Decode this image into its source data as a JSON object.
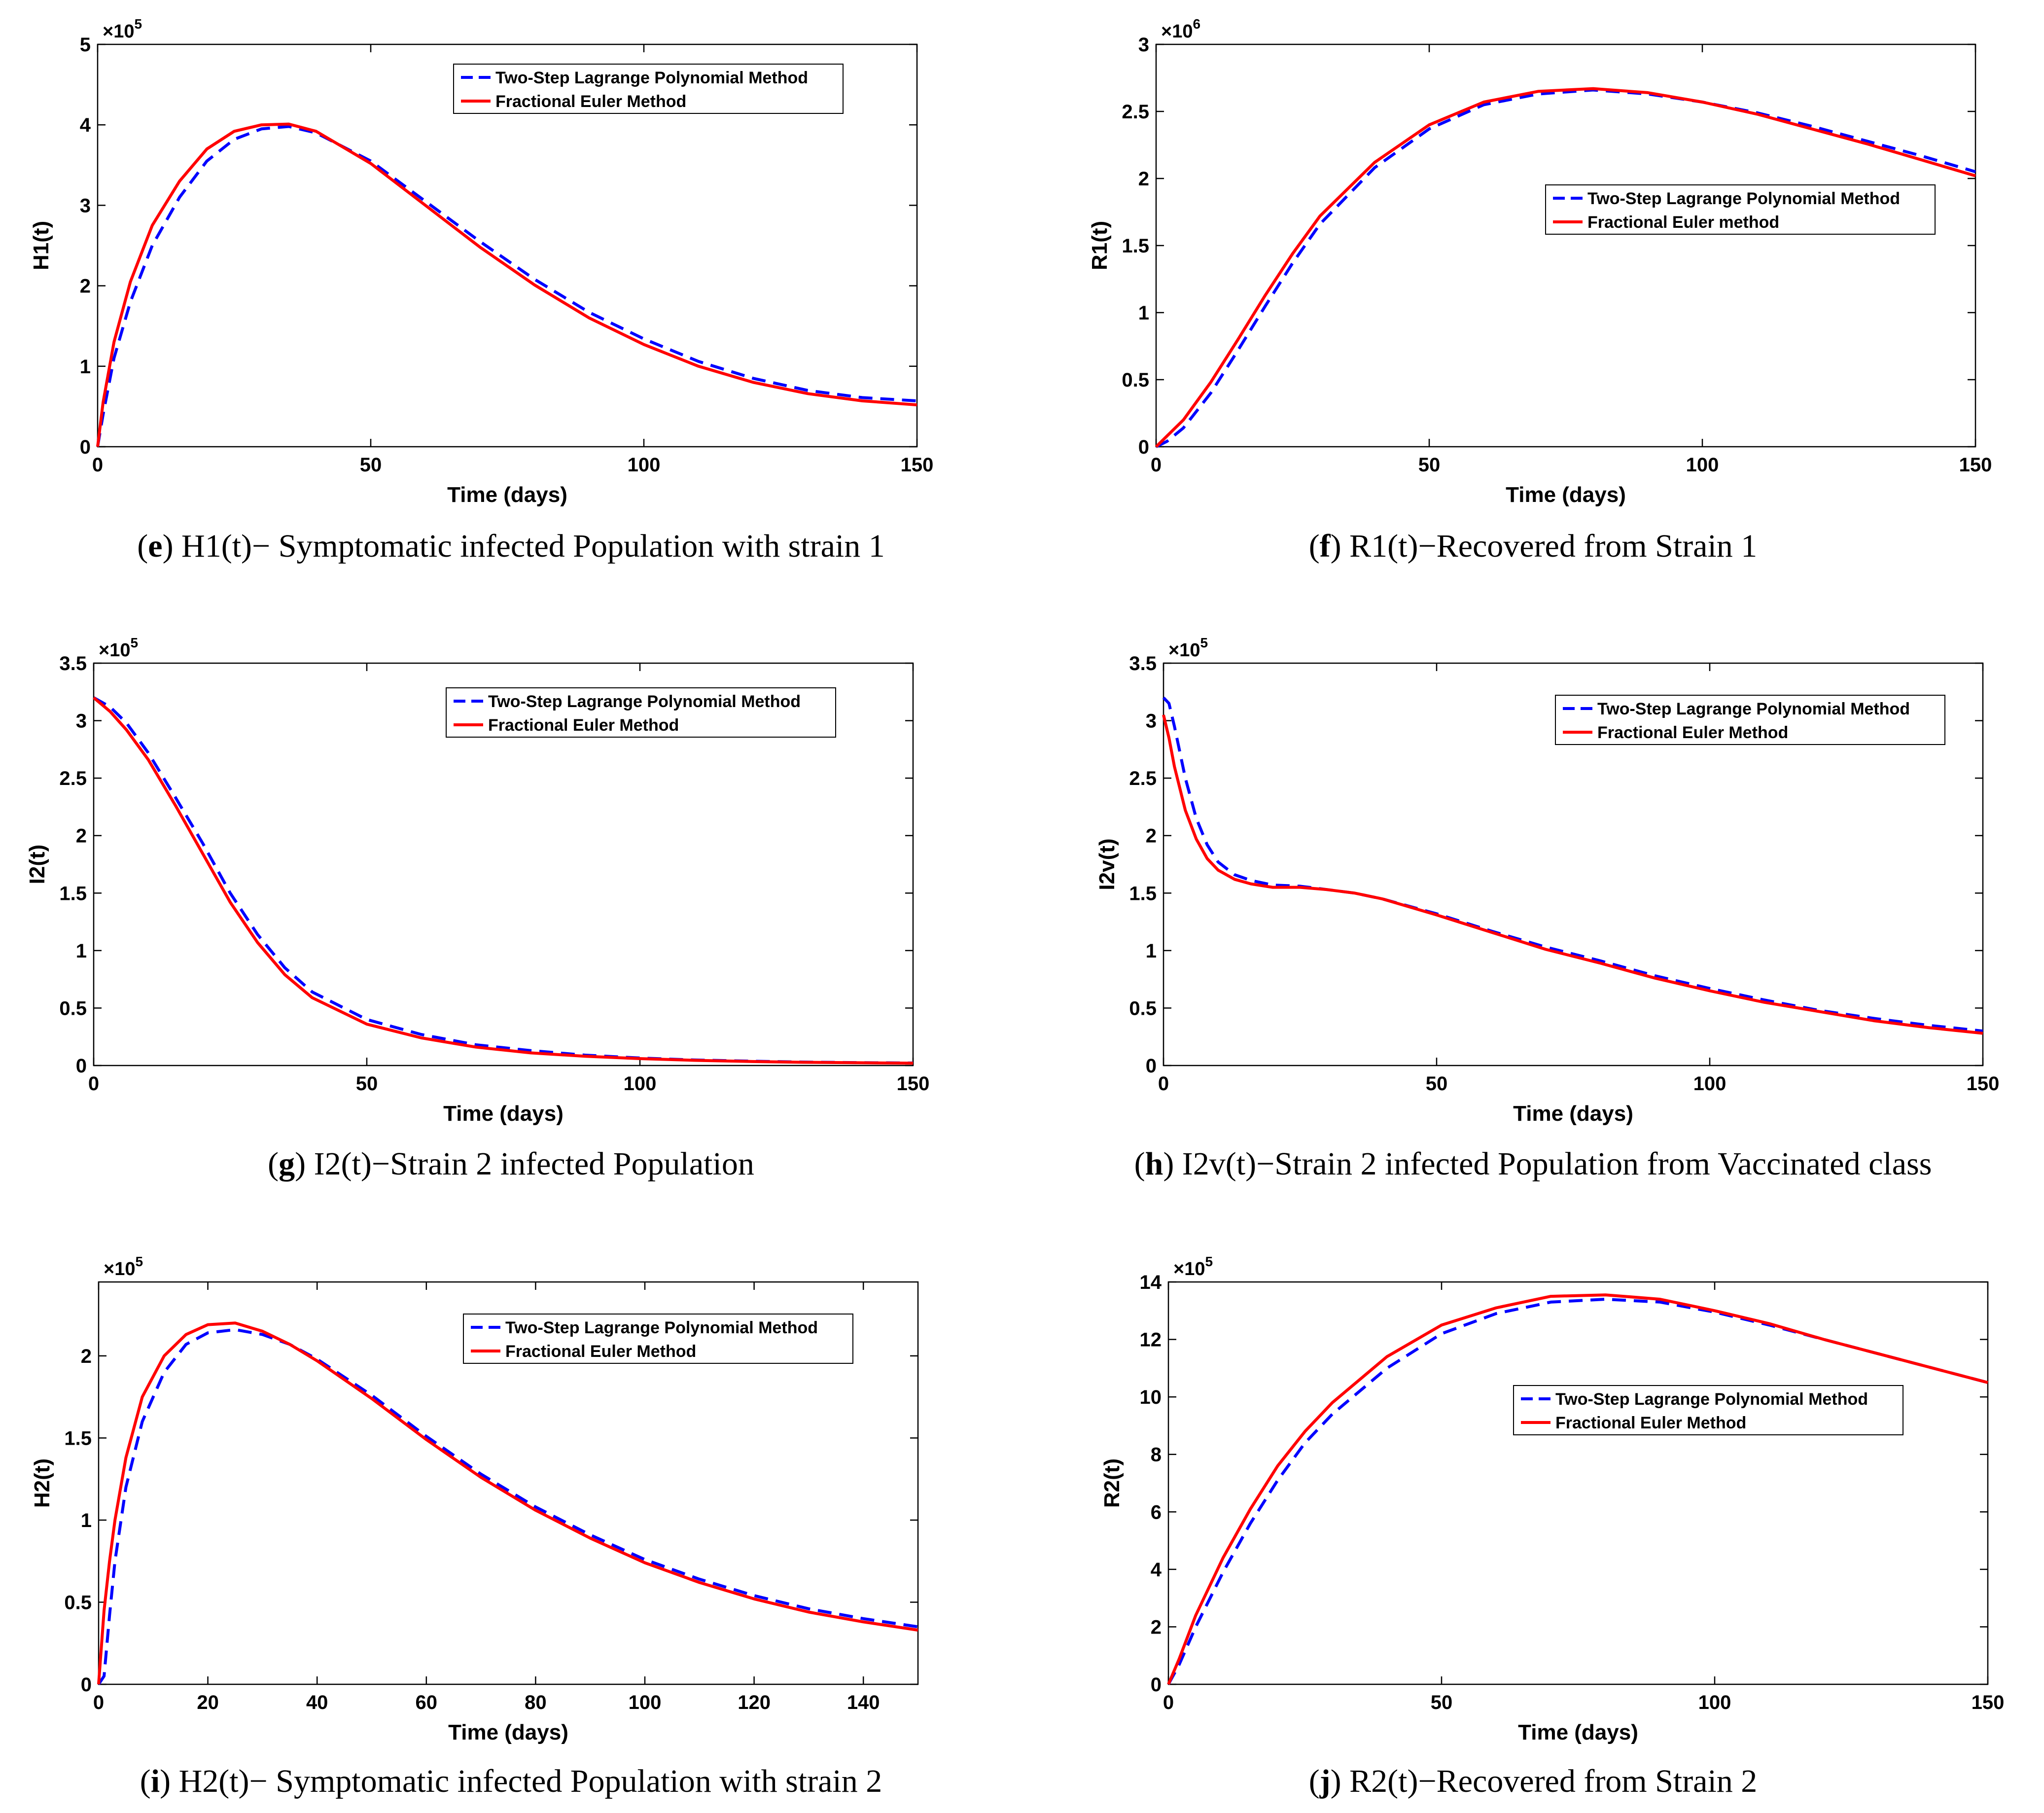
{
  "colors": {
    "series_dashed": "#0000ff",
    "series_solid": "#ff0000",
    "axis": "#000000"
  },
  "captions": [
    {
      "letter": "e",
      "text": "H1(t)− Symptomatic infected Population with strain 1"
    },
    {
      "letter": "f",
      "text": "R1(t)−Recovered from Strain 1"
    },
    {
      "letter": "g",
      "text": "I2(t)−Strain 2 infected Population"
    },
    {
      "letter": "h",
      "text": "I2v(t)−Strain 2 infected Population from Vaccinated class"
    },
    {
      "letter": "i",
      "text": "H2(t)− Symptomatic infected Population with strain 2"
    },
    {
      "letter": "j",
      "text": "R2(t)−Recovered from Strain 2"
    }
  ],
  "chart_data": [
    {
      "id": "e",
      "type": "line",
      "xlabel": "Time (days)",
      "ylabel": "H1(t)",
      "exponent": "×10^5",
      "xlim": [
        0,
        150
      ],
      "ylim": [
        0,
        5
      ],
      "xticks": [
        0,
        50,
        100,
        150
      ],
      "yticks": [
        0,
        1,
        2,
        3,
        4,
        5
      ],
      "legend": [
        "Two-Step Lagrange Polynomial Method",
        "Fractional Euler Method"
      ],
      "series": [
        {
          "name": "Two-Step Lagrange Polynomial Method",
          "style": "dashed",
          "x": [
            0,
            1,
            3,
            6,
            10,
            15,
            20,
            25,
            30,
            35,
            40,
            50,
            60,
            70,
            80,
            90,
            100,
            110,
            120,
            130,
            140,
            150
          ],
          "y": [
            0,
            0.4,
            1.1,
            1.8,
            2.5,
            3.1,
            3.55,
            3.82,
            3.95,
            3.98,
            3.9,
            3.55,
            3.05,
            2.55,
            2.08,
            1.67,
            1.34,
            1.06,
            0.85,
            0.7,
            0.61,
            0.57
          ]
        },
        {
          "name": "Fractional Euler Method",
          "style": "solid",
          "x": [
            0,
            1,
            3,
            6,
            10,
            15,
            20,
            25,
            30,
            35,
            40,
            50,
            60,
            70,
            80,
            90,
            100,
            110,
            120,
            130,
            140,
            150
          ],
          "y": [
            0,
            0.55,
            1.3,
            2.05,
            2.75,
            3.3,
            3.7,
            3.92,
            4.0,
            4.01,
            3.92,
            3.52,
            3.0,
            2.48,
            2.01,
            1.6,
            1.27,
            1.0,
            0.8,
            0.66,
            0.57,
            0.52
          ]
        }
      ]
    },
    {
      "id": "f",
      "type": "line",
      "xlabel": "Time (days)",
      "ylabel": "R1(t)",
      "exponent": "×10^6",
      "xlim": [
        0,
        150
      ],
      "ylim": [
        0,
        3
      ],
      "xticks": [
        0,
        50,
        100,
        150
      ],
      "yticks": [
        0,
        0.5,
        1,
        1.5,
        2,
        2.5,
        3
      ],
      "legend": [
        "Two-Step Lagrange Polynomial Method",
        "Fractional Euler method"
      ],
      "series": [
        {
          "name": "Two-Step Lagrange Polynomial Method",
          "style": "dashed",
          "x": [
            0,
            2,
            5,
            10,
            15,
            20,
            25,
            30,
            40,
            50,
            60,
            70,
            80,
            90,
            100,
            110,
            120,
            130,
            140,
            150
          ],
          "y": [
            0,
            0.04,
            0.14,
            0.4,
            0.72,
            1.05,
            1.37,
            1.66,
            2.08,
            2.37,
            2.55,
            2.63,
            2.66,
            2.63,
            2.57,
            2.49,
            2.39,
            2.28,
            2.17,
            2.05
          ]
        },
        {
          "name": "Fractional Euler method",
          "style": "solid",
          "x": [
            0,
            2,
            5,
            10,
            15,
            20,
            25,
            30,
            40,
            50,
            60,
            70,
            80,
            90,
            100,
            110,
            120,
            130,
            140,
            150
          ],
          "y": [
            0,
            0.08,
            0.2,
            0.48,
            0.8,
            1.13,
            1.44,
            1.72,
            2.12,
            2.4,
            2.57,
            2.65,
            2.67,
            2.64,
            2.57,
            2.48,
            2.37,
            2.26,
            2.14,
            2.02
          ]
        }
      ]
    },
    {
      "id": "g",
      "type": "line",
      "xlabel": "Time (days)",
      "ylabel": "I2(t)",
      "exponent": "×10^5",
      "xlim": [
        0,
        150
      ],
      "ylim": [
        0,
        3.5
      ],
      "xticks": [
        0,
        50,
        100,
        150
      ],
      "yticks": [
        0,
        0.5,
        1,
        1.5,
        2,
        2.5,
        3,
        3.5
      ],
      "legend": [
        "Two-Step Lagrange Polynomial Method",
        "Fractional Euler Method"
      ],
      "series": [
        {
          "name": "Two-Step Lagrange Polynomial Method",
          "style": "dashed",
          "x": [
            0,
            3,
            6,
            10,
            15,
            20,
            25,
            30,
            35,
            40,
            50,
            60,
            70,
            80,
            90,
            100,
            110,
            120,
            130,
            140,
            150
          ],
          "y": [
            3.2,
            3.12,
            2.98,
            2.72,
            2.33,
            1.93,
            1.5,
            1.14,
            0.85,
            0.64,
            0.4,
            0.27,
            0.18,
            0.13,
            0.09,
            0.065,
            0.048,
            0.038,
            0.03,
            0.025,
            0.022
          ]
        },
        {
          "name": "Fractional Euler Method",
          "style": "solid",
          "x": [
            0,
            3,
            6,
            10,
            15,
            20,
            25,
            30,
            35,
            40,
            50,
            60,
            70,
            80,
            90,
            100,
            110,
            120,
            130,
            140,
            150
          ],
          "y": [
            3.2,
            3.08,
            2.92,
            2.66,
            2.26,
            1.84,
            1.42,
            1.07,
            0.79,
            0.59,
            0.36,
            0.24,
            0.16,
            0.11,
            0.08,
            0.06,
            0.045,
            0.035,
            0.028,
            0.024,
            0.02
          ]
        }
      ]
    },
    {
      "id": "h",
      "type": "line",
      "xlabel": "Time (days)",
      "ylabel": "I2v(t)",
      "exponent": "×10^5",
      "xlim": [
        0,
        150
      ],
      "ylim": [
        0,
        3.5
      ],
      "xticks": [
        0,
        50,
        100,
        150
      ],
      "yticks": [
        0,
        0.5,
        1,
        1.5,
        2,
        2.5,
        3,
        3.5
      ],
      "legend": [
        "Two-Step Lagrange Polynomial Method",
        "Fractional Euler Method"
      ],
      "series": [
        {
          "name": "Two-Step Lagrange Polynomial Method",
          "style": "dashed",
          "x": [
            0,
            1,
            2,
            4,
            6,
            8,
            10,
            13,
            16,
            20,
            25,
            30,
            35,
            40,
            50,
            60,
            70,
            80,
            90,
            100,
            110,
            120,
            130,
            140,
            150
          ],
          "y": [
            3.2,
            3.15,
            2.95,
            2.5,
            2.15,
            1.92,
            1.77,
            1.66,
            1.61,
            1.57,
            1.56,
            1.53,
            1.5,
            1.45,
            1.32,
            1.17,
            1.03,
            0.91,
            0.78,
            0.67,
            0.57,
            0.48,
            0.41,
            0.35,
            0.3
          ]
        },
        {
          "name": "Fractional Euler Method",
          "style": "solid",
          "x": [
            0,
            1,
            2,
            4,
            6,
            8,
            10,
            13,
            16,
            20,
            25,
            30,
            35,
            40,
            50,
            60,
            70,
            80,
            90,
            100,
            110,
            120,
            130,
            140,
            150
          ],
          "y": [
            3.05,
            2.85,
            2.6,
            2.22,
            1.97,
            1.8,
            1.7,
            1.62,
            1.58,
            1.55,
            1.55,
            1.53,
            1.5,
            1.45,
            1.31,
            1.16,
            1.01,
            0.89,
            0.76,
            0.65,
            0.55,
            0.47,
            0.39,
            0.33,
            0.28
          ]
        }
      ]
    },
    {
      "id": "i",
      "type": "line",
      "xlabel": "Time (days)",
      "ylabel": "H2(t)",
      "exponent": "×10^5",
      "xlim": [
        0,
        150
      ],
      "ylim": [
        0,
        2.45
      ],
      "xticks": [
        0,
        20,
        40,
        60,
        80,
        100,
        120,
        140
      ],
      "yticks": [
        0,
        0.5,
        1,
        1.5,
        2
      ],
      "legend": [
        "Two-Step Lagrange Polynomial Method",
        "Fractional Euler Method"
      ],
      "series": [
        {
          "name": "Two-Step Lagrange Polynomial Method",
          "style": "dashed",
          "x": [
            0,
            1,
            2,
            3,
            5,
            8,
            12,
            16,
            20,
            25,
            30,
            35,
            40,
            50,
            60,
            70,
            80,
            90,
            100,
            110,
            120,
            130,
            140,
            150
          ],
          "y": [
            0,
            0.05,
            0.42,
            0.75,
            1.2,
            1.6,
            1.9,
            2.07,
            2.14,
            2.16,
            2.13,
            2.07,
            1.98,
            1.76,
            1.51,
            1.28,
            1.08,
            0.91,
            0.76,
            0.64,
            0.54,
            0.46,
            0.4,
            0.35
          ]
        },
        {
          "name": "Fractional Euler Method",
          "style": "solid",
          "x": [
            0,
            1,
            2,
            3,
            5,
            8,
            12,
            16,
            20,
            25,
            30,
            35,
            40,
            50,
            60,
            70,
            80,
            90,
            100,
            110,
            120,
            130,
            140,
            150
          ],
          "y": [
            0,
            0.45,
            0.75,
            1.0,
            1.38,
            1.75,
            2.0,
            2.13,
            2.19,
            2.2,
            2.15,
            2.07,
            1.97,
            1.74,
            1.49,
            1.26,
            1.06,
            0.89,
            0.74,
            0.62,
            0.52,
            0.44,
            0.38,
            0.33
          ]
        }
      ]
    },
    {
      "id": "j",
      "type": "line",
      "xlabel": "Time (days)",
      "ylabel": "R2(t)",
      "exponent": "×10^5",
      "xlim": [
        0,
        150
      ],
      "ylim": [
        0,
        14
      ],
      "xticks": [
        0,
        50,
        100,
        150
      ],
      "yticks": [
        0,
        2,
        4,
        6,
        8,
        10,
        12,
        14
      ],
      "legend": [
        "Two-Step Lagrange Polynomial Method",
        "Fractional Euler Method"
      ],
      "series": [
        {
          "name": "Two-Step Lagrange Polynomial Method",
          "style": "dashed",
          "x": [
            0,
            2,
            5,
            10,
            15,
            20,
            25,
            30,
            40,
            50,
            60,
            70,
            80,
            90,
            100,
            110,
            120,
            130,
            140,
            150
          ],
          "y": [
            0,
            0.7,
            2.0,
            3.9,
            5.6,
            7.1,
            8.4,
            9.4,
            11.0,
            12.2,
            12.9,
            13.3,
            13.4,
            13.3,
            12.95,
            12.5,
            12.0,
            11.5,
            11.0,
            10.5
          ]
        },
        {
          "name": "Fractional Euler Method",
          "style": "solid",
          "x": [
            0,
            2,
            5,
            10,
            15,
            20,
            25,
            30,
            40,
            50,
            60,
            70,
            80,
            90,
            100,
            110,
            120,
            130,
            140,
            150
          ],
          "y": [
            0,
            0.9,
            2.4,
            4.4,
            6.1,
            7.6,
            8.8,
            9.8,
            11.4,
            12.5,
            13.1,
            13.5,
            13.55,
            13.4,
            13.0,
            12.55,
            12.0,
            11.5,
            11.0,
            10.5
          ]
        }
      ]
    }
  ]
}
